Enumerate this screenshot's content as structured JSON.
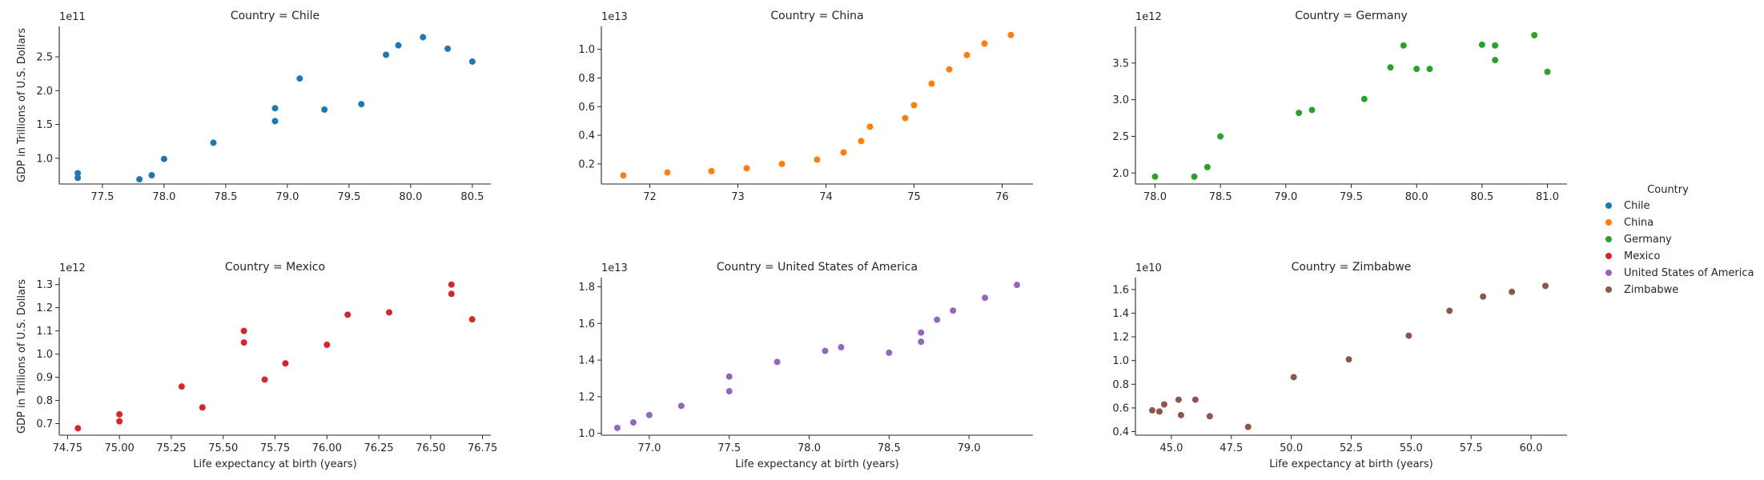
{
  "legend": {
    "title": "Country",
    "placement": "right"
  },
  "chart_data": [
    {
      "type": "scatter",
      "title": "Country = Chile",
      "xlabel": "",
      "ylabel": "GDP in Trillions of U.S. Dollars",
      "color": "#1f77b4",
      "exponent_label": "1e11",
      "xlim": [
        77.15,
        80.65
      ],
      "ylim": [
        0.62,
        2.95
      ],
      "xticks": [
        77.5,
        78.0,
        78.5,
        79.0,
        79.5,
        80.0,
        80.5
      ],
      "xtick_labels": [
        "77.5",
        "78.0",
        "78.5",
        "79.0",
        "79.5",
        "80.0",
        "80.5"
      ],
      "yticks": [
        1.0,
        1.5,
        2.0,
        2.5
      ],
      "ytick_labels": [
        "1.0",
        "1.5",
        "2.0",
        "2.5"
      ],
      "x": [
        77.3,
        77.3,
        77.8,
        77.9,
        78.0,
        78.4,
        78.9,
        78.9,
        79.1,
        79.3,
        79.6,
        79.8,
        79.9,
        80.1,
        80.3,
        80.5
      ],
      "y": [
        0.78,
        0.71,
        0.69,
        0.75,
        0.99,
        1.23,
        1.55,
        1.74,
        2.18,
        1.72,
        1.8,
        2.53,
        2.67,
        2.79,
        2.62,
        2.43
      ]
    },
    {
      "type": "scatter",
      "title": "Country = China",
      "xlabel": "",
      "ylabel": "",
      "color": "#ff7f0e",
      "exponent_label": "1e13",
      "xlim": [
        71.45,
        76.35
      ],
      "ylim": [
        0.06,
        1.16
      ],
      "xticks": [
        72,
        73,
        74,
        75,
        76
      ],
      "xtick_labels": [
        "72",
        "73",
        "74",
        "75",
        "76"
      ],
      "yticks": [
        0.2,
        0.4,
        0.6,
        0.8,
        1.0
      ],
      "ytick_labels": [
        "0.2",
        "0.4",
        "0.6",
        "0.8",
        "1.0"
      ],
      "x": [
        71.7,
        72.2,
        72.7,
        73.1,
        73.5,
        73.9,
        74.2,
        74.4,
        74.5,
        74.9,
        75.0,
        75.2,
        75.4,
        75.6,
        75.8,
        76.1
      ],
      "y": [
        0.12,
        0.14,
        0.15,
        0.17,
        0.2,
        0.23,
        0.28,
        0.36,
        0.46,
        0.52,
        0.61,
        0.76,
        0.86,
        0.96,
        1.04,
        1.1
      ]
    },
    {
      "type": "scatter",
      "title": "Country = Germany",
      "xlabel": "",
      "ylabel": "",
      "color": "#2ca02c",
      "exponent_label": "1e12",
      "xlim": [
        77.85,
        81.15
      ],
      "ylim": [
        1.85,
        4.0
      ],
      "xticks": [
        78.0,
        78.5,
        79.0,
        79.5,
        80.0,
        80.5,
        81.0
      ],
      "xtick_labels": [
        "78.0",
        "78.5",
        "79.0",
        "79.5",
        "80.0",
        "80.5",
        "81.0"
      ],
      "yticks": [
        2.0,
        2.5,
        3.0,
        3.5
      ],
      "ytick_labels": [
        "2.0",
        "2.5",
        "3.0",
        "3.5"
      ],
      "x": [
        78.0,
        78.3,
        78.4,
        78.5,
        79.1,
        79.2,
        79.6,
        79.8,
        79.9,
        80.0,
        80.1,
        80.5,
        80.6,
        80.6,
        80.9,
        81.0
      ],
      "y": [
        1.95,
        1.95,
        2.08,
        2.5,
        2.82,
        2.86,
        3.01,
        3.44,
        3.74,
        3.42,
        3.42,
        3.75,
        3.54,
        3.74,
        3.88,
        3.38
      ]
    },
    {
      "type": "scatter",
      "title": "Country = Mexico",
      "xlabel": "Life expectancy at birth (years)",
      "ylabel": "GDP in Trillions of U.S. Dollars",
      "color": "#d62728",
      "exponent_label": "1e12",
      "xlim": [
        74.71,
        76.79
      ],
      "ylim": [
        0.65,
        1.33
      ],
      "xticks": [
        74.75,
        75.0,
        75.25,
        75.5,
        75.75,
        76.0,
        76.25,
        76.5,
        76.75
      ],
      "xtick_labels": [
        "74.75",
        "75.00",
        "75.25",
        "75.50",
        "75.75",
        "76.00",
        "76.25",
        "76.50",
        "76.75"
      ],
      "yticks": [
        0.7,
        0.8,
        0.9,
        1.0,
        1.1,
        1.2,
        1.3
      ],
      "ytick_labels": [
        "0.7",
        "0.8",
        "0.9",
        "1.0",
        "1.1",
        "1.2",
        "1.3"
      ],
      "x": [
        74.8,
        75.0,
        75.0,
        75.3,
        75.4,
        75.6,
        75.6,
        75.7,
        75.8,
        76.0,
        76.1,
        76.3,
        76.6,
        76.6,
        76.7
      ],
      "y": [
        0.68,
        0.74,
        0.71,
        0.86,
        0.77,
        1.1,
        1.05,
        0.89,
        0.96,
        1.04,
        1.17,
        1.18,
        1.3,
        1.26,
        1.15
      ]
    },
    {
      "type": "scatter",
      "title": "Country = United States of America",
      "xlabel": "Life expectancy at birth (years)",
      "ylabel": "",
      "color": "#9467bd",
      "exponent_label": "1e13",
      "xlim": [
        76.7,
        79.4
      ],
      "ylim": [
        0.99,
        1.85
      ],
      "xticks": [
        77.0,
        77.5,
        78.0,
        78.5,
        79.0
      ],
      "xtick_labels": [
        "77.0",
        "77.5",
        "78.0",
        "78.5",
        "79.0"
      ],
      "yticks": [
        1.0,
        1.2,
        1.4,
        1.6,
        1.8
      ],
      "ytick_labels": [
        "1.0",
        "1.2",
        "1.4",
        "1.6",
        "1.8"
      ],
      "x": [
        76.8,
        76.9,
        77.0,
        77.2,
        77.5,
        77.5,
        77.8,
        78.1,
        78.2,
        78.5,
        78.7,
        78.7,
        78.8,
        78.9,
        79.1,
        79.3
      ],
      "y": [
        1.03,
        1.06,
        1.1,
        1.15,
        1.31,
        1.23,
        1.39,
        1.45,
        1.47,
        1.44,
        1.5,
        1.55,
        1.62,
        1.67,
        1.74,
        1.81
      ]
    },
    {
      "type": "scatter",
      "title": "Country = Zimbabwe",
      "xlabel": "Life expectancy at birth (years)",
      "ylabel": "",
      "color": "#8c564b",
      "exponent_label": "1e10",
      "xlim": [
        43.5,
        61.5
      ],
      "ylim": [
        0.37,
        1.7
      ],
      "xticks": [
        45.0,
        47.5,
        50.0,
        52.5,
        55.0,
        57.5,
        60.0
      ],
      "xtick_labels": [
        "45.0",
        "47.5",
        "50.0",
        "52.5",
        "55.0",
        "57.5",
        "60.0"
      ],
      "yticks": [
        0.4,
        0.6,
        0.8,
        1.0,
        1.2,
        1.4,
        1.6
      ],
      "ytick_labels": [
        "0.4",
        "0.6",
        "0.8",
        "1.0",
        "1.2",
        "1.4",
        "1.6"
      ],
      "x": [
        44.2,
        44.5,
        44.7,
        45.3,
        45.4,
        46.0,
        46.6,
        48.2,
        50.1,
        52.4,
        54.9,
        56.6,
        58.0,
        59.2,
        60.6
      ],
      "y": [
        0.58,
        0.57,
        0.63,
        0.67,
        0.54,
        0.67,
        0.53,
        0.44,
        0.86,
        1.01,
        1.21,
        1.42,
        1.54,
        1.58,
        1.63
      ]
    }
  ]
}
